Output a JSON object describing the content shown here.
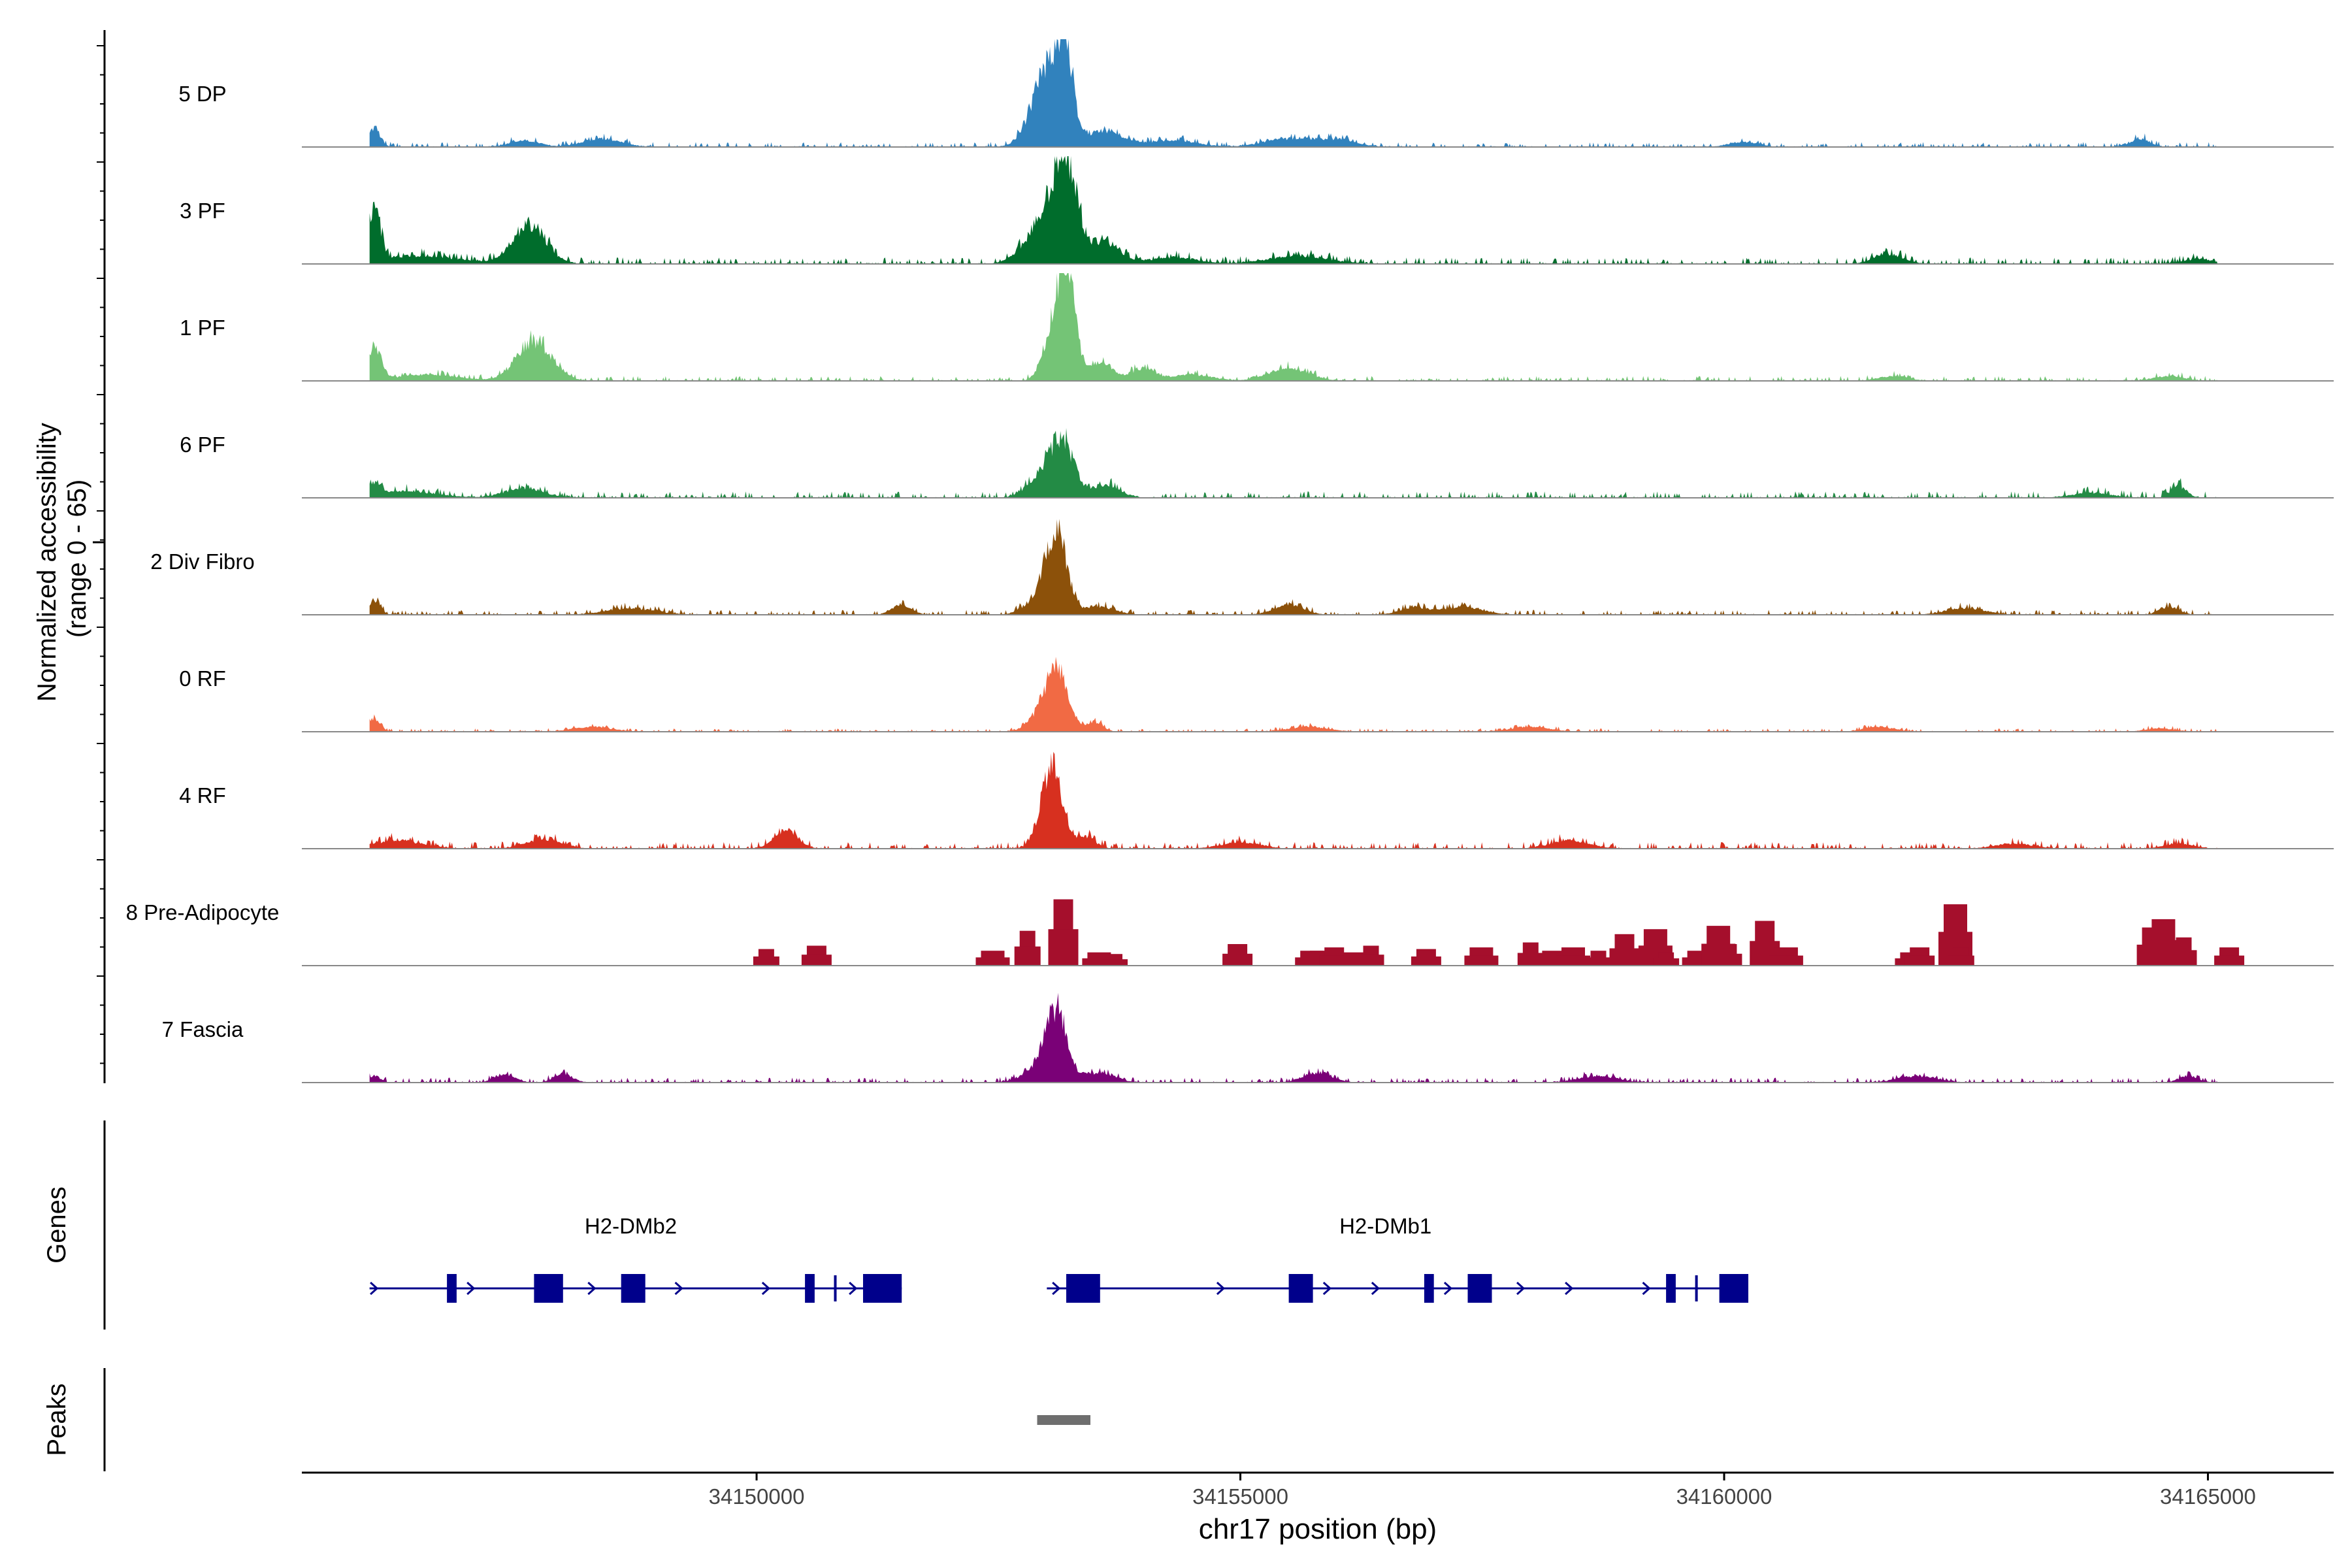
{
  "chart_data": {
    "type": "area",
    "title": "",
    "ylabel_line1": "Normalized accessibility",
    "ylabel_line2": "(range 0 - 65)",
    "xlabel": "chr17 position (bp)",
    "xlim": [
      34145300,
      34166300
    ],
    "ylim": [
      0,
      65
    ],
    "x_ticks": [
      34150000,
      34155000,
      34160000,
      34165000
    ],
    "x_tick_labels": [
      "34150000",
      "34155000",
      "34160000",
      "34165000"
    ],
    "track_range": [
      34146000,
      34165100
    ],
    "genes_label": "Genes",
    "peaks_label": "Peaks",
    "tracks": [
      {
        "name": "5 DP",
        "color": "#3182bd",
        "mode": "smooth",
        "noise": 3,
        "peaks": [
          [
            34146050,
            60,
            11
          ],
          [
            34147600,
            150,
            4
          ],
          [
            34148400,
            200,
            5
          ],
          [
            34152900,
            150,
            8
          ],
          [
            34153000,
            140,
            36
          ],
          [
            34153180,
            90,
            52
          ],
          [
            34153600,
            200,
            9
          ],
          [
            34154300,
            250,
            4
          ],
          [
            34155500,
            250,
            5
          ],
          [
            34156000,
            200,
            4
          ],
          [
            34160200,
            150,
            3
          ],
          [
            34164300,
            100,
            5
          ]
        ]
      },
      {
        "name": "3 PF",
        "color": "#006d2c",
        "mode": "smooth",
        "noise": 4,
        "peaks": [
          [
            34146050,
            60,
            33
          ],
          [
            34146500,
            400,
            5
          ],
          [
            34147650,
            170,
            24
          ],
          [
            34152800,
            150,
            8
          ],
          [
            34153000,
            140,
            25
          ],
          [
            34153200,
            120,
            55
          ],
          [
            34153600,
            150,
            13
          ],
          [
            34154300,
            250,
            4
          ],
          [
            34155600,
            300,
            5
          ],
          [
            34161700,
            150,
            6
          ],
          [
            34164900,
            150,
            3
          ]
        ]
      },
      {
        "name": "1 PF",
        "color": "#74c476",
        "mode": "smooth",
        "noise": 3,
        "peaks": [
          [
            34146050,
            70,
            20
          ],
          [
            34146600,
            300,
            4
          ],
          [
            34147700,
            180,
            24
          ],
          [
            34153050,
            100,
            25
          ],
          [
            34153200,
            90,
            64
          ],
          [
            34153550,
            130,
            12
          ],
          [
            34154000,
            120,
            8
          ],
          [
            34154500,
            200,
            4
          ],
          [
            34155500,
            200,
            8
          ],
          [
            34161750,
            150,
            3
          ],
          [
            34164600,
            150,
            3
          ]
        ]
      },
      {
        "name": "6 PF",
        "color": "#238b45",
        "mode": "smooth",
        "noise": 4,
        "peaks": [
          [
            34146050,
            70,
            8
          ],
          [
            34146400,
            300,
            4
          ],
          [
            34147600,
            200,
            6
          ],
          [
            34152900,
            130,
            10
          ],
          [
            34153150,
            120,
            36
          ],
          [
            34153600,
            150,
            8
          ],
          [
            34164700,
            80,
            7
          ],
          [
            34163800,
            200,
            3
          ]
        ]
      },
      {
        "name": "2 Div Fibro",
        "color": "#8c510a",
        "mode": "smooth",
        "noise": 3,
        "peaks": [
          [
            34146050,
            60,
            9
          ],
          [
            34148700,
            250,
            4
          ],
          [
            34151500,
            100,
            6
          ],
          [
            34152900,
            140,
            8
          ],
          [
            34153100,
            110,
            48
          ],
          [
            34153550,
            150,
            5
          ],
          [
            34155500,
            150,
            6
          ],
          [
            34156800,
            150,
            4
          ],
          [
            34157300,
            200,
            5
          ],
          [
            34162500,
            200,
            4
          ],
          [
            34164600,
            100,
            5
          ]
        ]
      },
      {
        "name": "0 RF",
        "color": "#f16a44",
        "mode": "smooth",
        "noise": 2,
        "peaks": [
          [
            34146050,
            60,
            8
          ],
          [
            34148300,
            200,
            3
          ],
          [
            34152900,
            120,
            6
          ],
          [
            34153100,
            120,
            37
          ],
          [
            34153500,
            80,
            6
          ],
          [
            34155700,
            200,
            3
          ],
          [
            34158000,
            200,
            3
          ],
          [
            34161600,
            150,
            3
          ],
          [
            34164500,
            150,
            2
          ]
        ]
      },
      {
        "name": "4 RF",
        "color": "#d7301f",
        "mode": "smooth",
        "noise": 4,
        "peaks": [
          [
            34146300,
            250,
            5
          ],
          [
            34147800,
            180,
            6
          ],
          [
            34150300,
            120,
            11
          ],
          [
            34153050,
            110,
            50
          ],
          [
            34153400,
            100,
            7
          ],
          [
            34155000,
            200,
            4
          ],
          [
            34158400,
            200,
            5
          ],
          [
            34163000,
            200,
            3
          ],
          [
            34164700,
            150,
            3
          ]
        ]
      },
      {
        "name": "8 Pre-Adipocyte",
        "color": "#a50f2c",
        "mode": "blocks",
        "blocks": [
          [
            34150100,
            10
          ],
          [
            34150600,
            12
          ],
          [
            34152400,
            9
          ],
          [
            34152800,
            21
          ],
          [
            34153150,
            40
          ],
          [
            34153500,
            8
          ],
          [
            34153700,
            7
          ],
          [
            34154950,
            13
          ],
          [
            34155700,
            9
          ],
          [
            34155800,
            9
          ],
          [
            34155950,
            11
          ],
          [
            34156150,
            8
          ],
          [
            34156350,
            12
          ],
          [
            34156900,
            10
          ],
          [
            34157450,
            11
          ],
          [
            34158000,
            14
          ],
          [
            34158200,
            9
          ],
          [
            34158400,
            11
          ],
          [
            34158700,
            9
          ],
          [
            34158950,
            19
          ],
          [
            34159250,
            22
          ],
          [
            34159400,
            8
          ],
          [
            34159700,
            9
          ],
          [
            34159900,
            24
          ],
          [
            34160050,
            13
          ],
          [
            34160400,
            27
          ],
          [
            34160600,
            11
          ],
          [
            34161900,
            8
          ],
          [
            34162000,
            11
          ],
          [
            34162350,
            37
          ],
          [
            34162450,
            11
          ],
          [
            34164400,
            23
          ],
          [
            34164500,
            28
          ],
          [
            34164750,
            17
          ],
          [
            34165200,
            11
          ]
        ]
      },
      {
        "name": "7 Fascia",
        "color": "#7a0177",
        "mode": "smooth",
        "noise": 3,
        "peaks": [
          [
            34146050,
            60,
            4
          ],
          [
            34147400,
            100,
            5
          ],
          [
            34148000,
            100,
            5
          ],
          [
            34152900,
            150,
            8
          ],
          [
            34153100,
            110,
            42
          ],
          [
            34153550,
            150,
            6
          ],
          [
            34155800,
            150,
            6
          ],
          [
            34158700,
            200,
            4
          ],
          [
            34162000,
            200,
            4
          ],
          [
            34164800,
            100,
            4
          ]
        ]
      }
    ],
    "genes": [
      {
        "name": "H2-DMb2",
        "label_pos": 34148700,
        "start": 34146000,
        "end": 34151500,
        "exons": [
          [
            34146800,
            34146900,
            "thin"
          ],
          [
            34147700,
            34148000,
            "thick"
          ],
          [
            34148600,
            34148850,
            "thick"
          ],
          [
            34150500,
            34150600,
            "thin"
          ],
          [
            34150800,
            34150830,
            "line"
          ],
          [
            34151100,
            34151500,
            "thick"
          ]
        ],
        "arrows": [
          34146050,
          34147050,
          34148300,
          34149200,
          34150100,
          34151000
        ]
      },
      {
        "name": "H2-DMb1",
        "label_pos": 34156500,
        "start": 34153000,
        "end": 34160200,
        "exons": [
          [
            34153200,
            34153550,
            "thick"
          ],
          [
            34155500,
            34155750,
            "thick"
          ],
          [
            34156900,
            34157000,
            "thin"
          ],
          [
            34157350,
            34157600,
            "thick"
          ],
          [
            34159400,
            34159500,
            "thin"
          ],
          [
            34159700,
            34159730,
            "line"
          ],
          [
            34159950,
            34160250,
            "thick"
          ]
        ],
        "arrows": [
          34153100,
          34154800,
          34155900,
          34156400,
          34157150,
          34157900,
          34158400,
          34159200
        ]
      }
    ],
    "peak_regions": [
      [
        34152900,
        34153450
      ]
    ]
  }
}
